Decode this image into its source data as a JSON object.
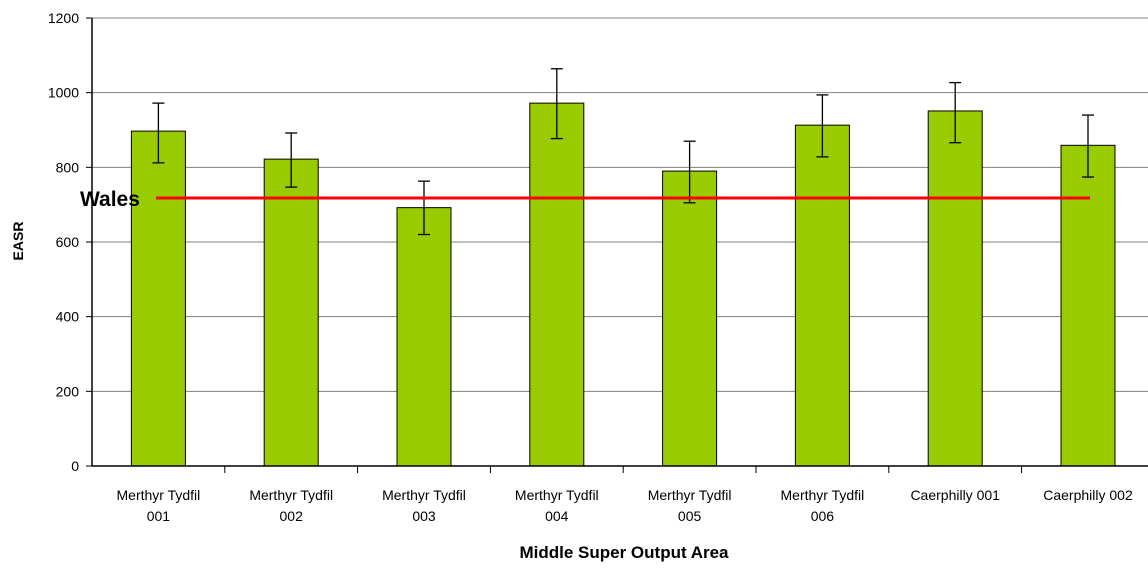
{
  "chart_data": {
    "type": "bar",
    "title": "",
    "xlabel": "Middle Super Output Area",
    "ylabel": "EASR",
    "ylim": [
      0,
      1200
    ],
    "yticks": [
      0,
      200,
      400,
      600,
      800,
      1000,
      1200
    ],
    "grid": true,
    "categories": [
      [
        "Merthyr Tydfil",
        "001"
      ],
      [
        "Merthyr Tydfil",
        "002"
      ],
      [
        "Merthyr Tydfil",
        "003"
      ],
      [
        "Merthyr Tydfil",
        "004"
      ],
      [
        "Merthyr Tydfil",
        "005"
      ],
      [
        "Merthyr Tydfil",
        "006"
      ],
      [
        "Caerphilly 001"
      ],
      [
        "Caerphilly 002"
      ]
    ],
    "values": [
      897,
      822,
      692,
      972,
      790,
      913,
      951,
      859
    ],
    "error_low": [
      812,
      747,
      620,
      877,
      705,
      828,
      866,
      774
    ],
    "error_high": [
      972,
      892,
      763,
      1064,
      870,
      994,
      1027,
      940
    ],
    "reference_line": {
      "label": "Wales",
      "value": 718
    },
    "colors": {
      "bar": "#99cc00",
      "bar_stroke": "#000000",
      "reference": "#ff0000",
      "grid": "#808080"
    }
  }
}
